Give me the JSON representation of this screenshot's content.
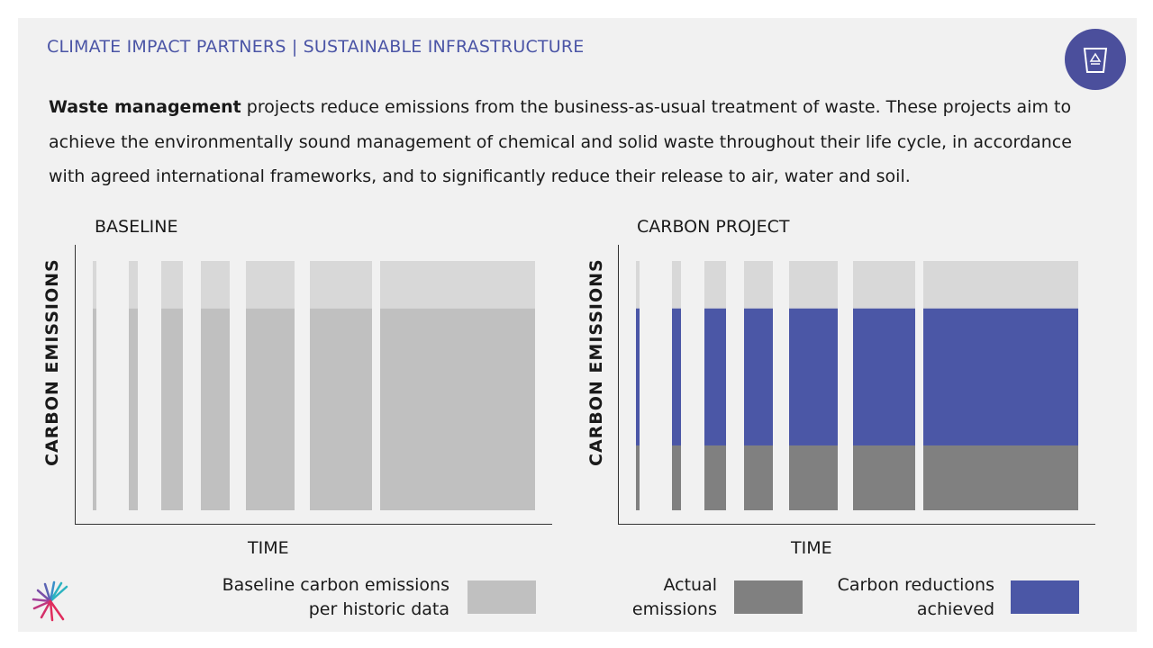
{
  "header": "CLIMATE IMPACT PARTNERS | SUSTAINABLE INFRASTRUCTURE",
  "intro": {
    "bold": "Waste management",
    "text": " projects reduce emissions from the business-as-usual treatment of waste. These projects aim to achieve the environmentally sound management of chemical and solid waste throughout their life cycle, in accordance with agreed international frameworks, and to significantly reduce their release to air, water and soil."
  },
  "badge_icon": "recycle-bin-icon",
  "colors": {
    "accent": "#4b55a6",
    "baseline_top": "#d8d8d8",
    "baseline": "#c0c0c0",
    "actual": "#808080",
    "reductions": "#4b57a6"
  },
  "chart_data": [
    {
      "type": "bar",
      "title": "BASELINE",
      "ylabel": "CARBON EMISSIONS",
      "xlabel": "TIME",
      "bars": 7,
      "series": [
        {
          "name": "Baseline carbon emissions per historic data",
          "values": [
            0.81,
            0.81,
            0.81,
            0.81,
            0.81,
            0.81,
            0.81
          ]
        },
        {
          "name": "",
          "values": [
            0.19,
            0.19,
            0.19,
            0.19,
            0.19,
            0.19,
            0.19
          ]
        }
      ]
    },
    {
      "type": "bar",
      "title": "CARBON PROJECT",
      "ylabel": "CARBON EMISSIONS",
      "xlabel": "TIME",
      "bars": 7,
      "series": [
        {
          "name": "Actual emissions",
          "values": [
            0.26,
            0.26,
            0.26,
            0.26,
            0.26,
            0.26,
            0.26
          ]
        },
        {
          "name": "Carbon reductions achieved",
          "values": [
            0.55,
            0.55,
            0.55,
            0.55,
            0.55,
            0.55,
            0.55
          ]
        },
        {
          "name": "",
          "values": [
            0.19,
            0.19,
            0.19,
            0.19,
            0.19,
            0.19,
            0.19
          ]
        }
      ]
    }
  ],
  "legend": {
    "baseline": "Baseline carbon emissions per historic data",
    "actual": "Actual emissions",
    "reductions": "Carbon reductions achieved"
  },
  "logo_icon": "climate-impact-partners-logo"
}
